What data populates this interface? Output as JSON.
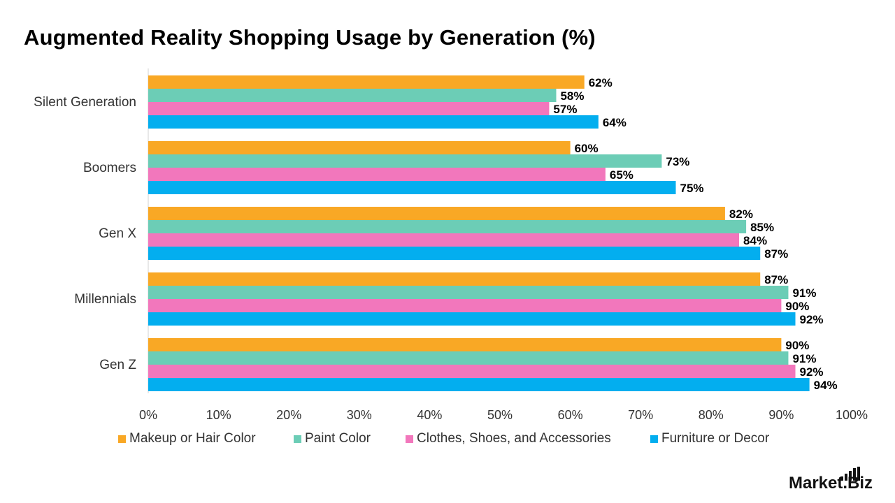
{
  "chart_data": {
    "type": "bar",
    "orientation": "horizontal",
    "title": "Augmented Reality Shopping Usage by Generation (%)",
    "categories": [
      "Silent Generation",
      "Boomers",
      "Gen X",
      "Millennials",
      "Gen Z"
    ],
    "series": [
      {
        "name": "Makeup or Hair Color",
        "color": "#F9A825",
        "values": [
          62,
          60,
          82,
          87,
          90
        ]
      },
      {
        "name": "Paint Color",
        "color": "#6CCDB6",
        "values": [
          58,
          73,
          85,
          91,
          91
        ]
      },
      {
        "name": "Clothes, Shoes, and Accessories",
        "color": "#F277BC",
        "values": [
          57,
          65,
          84,
          90,
          92
        ]
      },
      {
        "name": "Furniture or Decor",
        "color": "#03AEEF",
        "values": [
          64,
          75,
          87,
          92,
          94
        ]
      }
    ],
    "xlim": [
      0,
      100
    ],
    "x_ticks": [
      "0%",
      "10%",
      "20%",
      "30%",
      "40%",
      "50%",
      "60%",
      "70%",
      "80%",
      "90%",
      "100%"
    ],
    "value_suffix": "%",
    "grid": false,
    "legend_position": "bottom"
  },
  "brand": {
    "name_part1": "Market",
    "name_part2": "Biz"
  }
}
